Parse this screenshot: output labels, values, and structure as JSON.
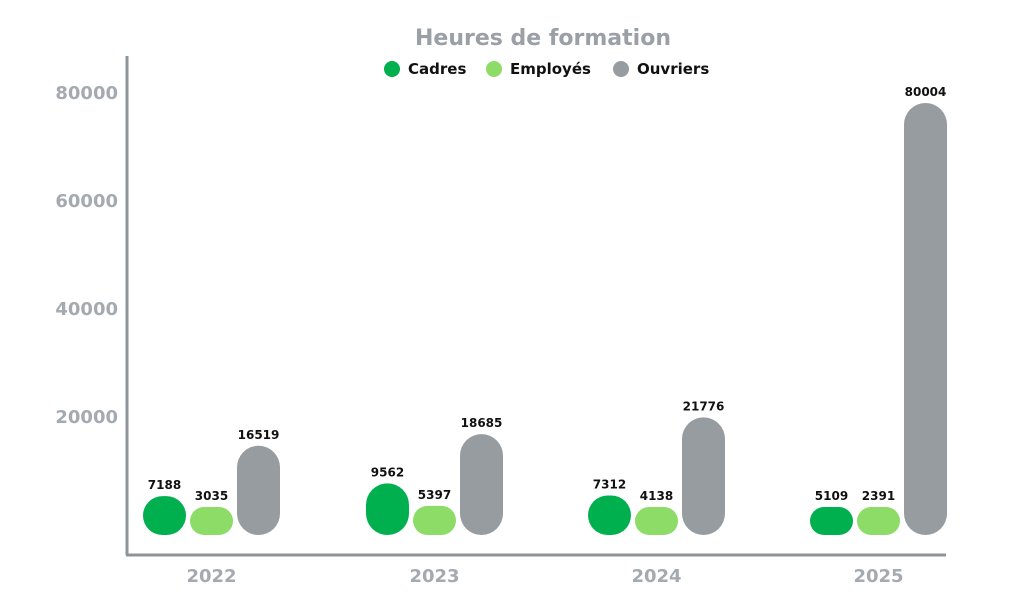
{
  "chart_data": {
    "type": "bar",
    "title": "Heures de formation",
    "xlabel": "",
    "ylabel": "",
    "categories": [
      "2022",
      "2023",
      "2024",
      "2025"
    ],
    "series": [
      {
        "name": "Cadres",
        "color": "#00b04f",
        "values": [
          7188,
          9562,
          7312,
          5109
        ]
      },
      {
        "name": "Employés",
        "color": "#8ddc68",
        "values": [
          3035,
          5397,
          4138,
          2391
        ]
      },
      {
        "name": "Ouvriers",
        "color": "#969ca0",
        "values": [
          16519,
          18685,
          21776,
          80004
        ]
      }
    ],
    "yticks": [
      20000,
      40000,
      60000,
      80000
    ],
    "ylim": [
      0,
      80000
    ],
    "grid": false,
    "legend_position": "top-center",
    "axis_color": "#8e949a"
  }
}
